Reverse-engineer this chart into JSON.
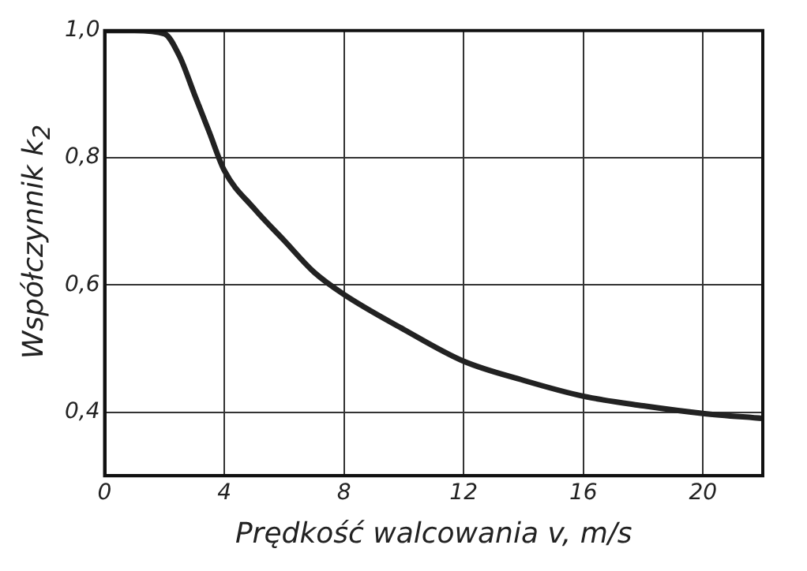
{
  "chart_data": {
    "type": "line",
    "xlabel": "Prędkość walcowania v, m/s",
    "ylabel": "Współczynnik k$_{2}$",
    "series": [
      {
        "color": "#222222",
        "x": [
          0,
          1,
          2,
          2.5,
          3,
          3.5,
          4,
          5,
          6,
          7,
          8,
          10,
          12,
          14,
          16,
          18,
          20,
          22
        ],
        "values": [
          1.0,
          1.0,
          0.995,
          0.96,
          0.9,
          0.84,
          0.78,
          0.72,
          0.67,
          0.62,
          0.585,
          0.53,
          0.48,
          0.45,
          0.425,
          0.41,
          0.398,
          0.39
        ]
      }
    ],
    "xlim": [
      0,
      22
    ],
    "xticks": [
      0,
      4,
      8,
      12,
      16,
      20
    ],
    "ylim": [
      0.3,
      1.0
    ],
    "yticks": [
      {
        "value": 0.4,
        "label": "0,4"
      },
      {
        "value": 0.6,
        "label": "0,6"
      },
      {
        "value": 0.8,
        "label": "0,8"
      },
      {
        "value": 1.0,
        "label": "1,0"
      }
    ],
    "grid": true,
    "legend": false,
    "marker": "none",
    "line_style": "solid"
  }
}
